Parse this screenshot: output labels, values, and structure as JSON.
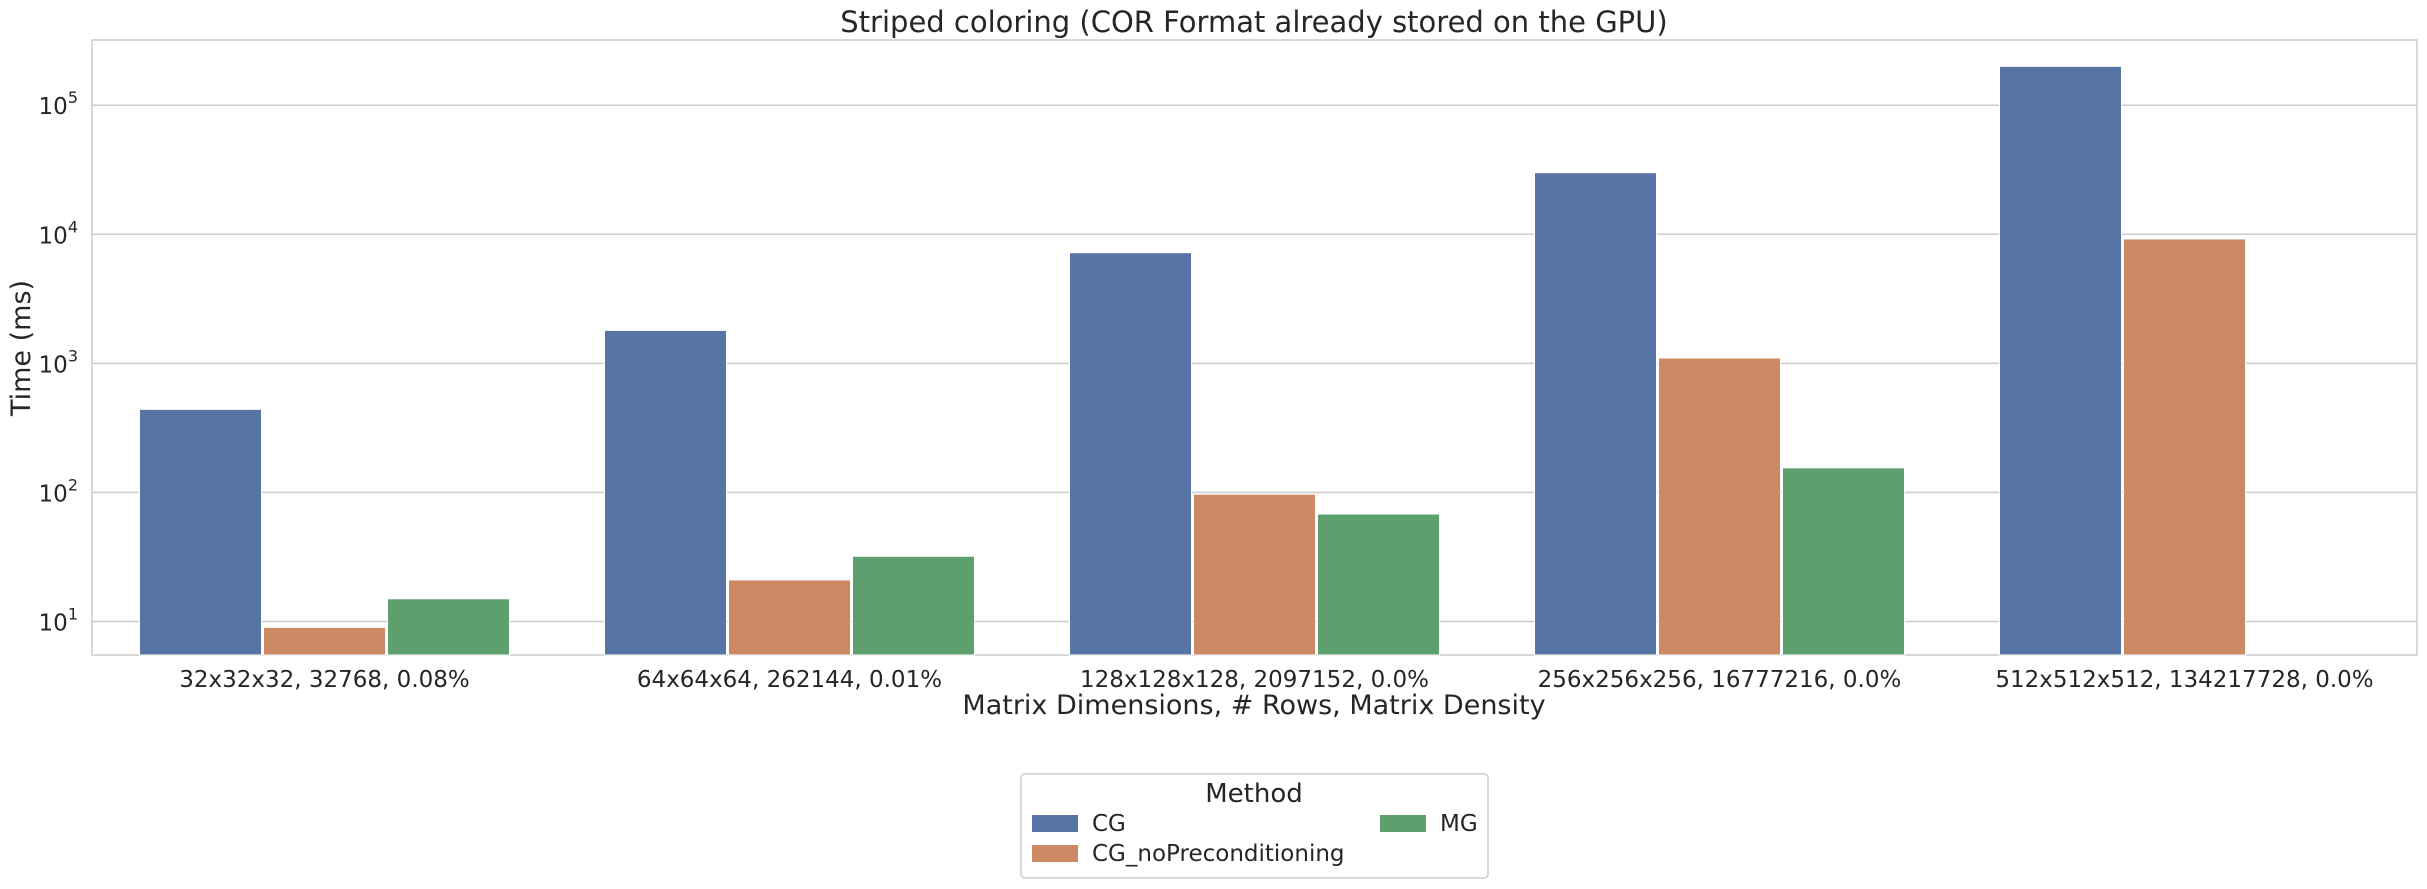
{
  "chart_data": {
    "type": "bar",
    "title": "Striped coloring (COR Format already stored on the GPU)",
    "xlabel": "Matrix Dimensions, # Rows, Matrix Density",
    "ylabel": "Time (ms)",
    "yscale": "log",
    "ylim": [
      5.5,
      320000
    ],
    "ytick_labels": [
      "10^1",
      "10^2",
      "10^3",
      "10^4",
      "10^5"
    ],
    "grid": true,
    "categories": [
      "32x32x32, 32768, 0.08%",
      "64x64x64, 262144, 0.01%",
      "128x128x128, 2097152, 0.0%",
      "256x256x256, 16777216, 0.0%",
      "512x512x512, 134217728, 0.0%"
    ],
    "series": [
      {
        "name": "CG",
        "color": "#5874a4",
        "values": [
          440,
          1800,
          7200,
          30000,
          200000
        ]
      },
      {
        "name": "CG_noPreconditioning",
        "color": "#cd8963",
        "values": [
          9,
          21,
          97,
          1100,
          9200
        ]
      },
      {
        "name": "MG",
        "color": "#5e9f6e",
        "values": [
          15,
          32,
          68,
          155,
          null
        ]
      }
    ],
    "legend": {
      "title": "Method",
      "placement": "bottom-center"
    }
  }
}
